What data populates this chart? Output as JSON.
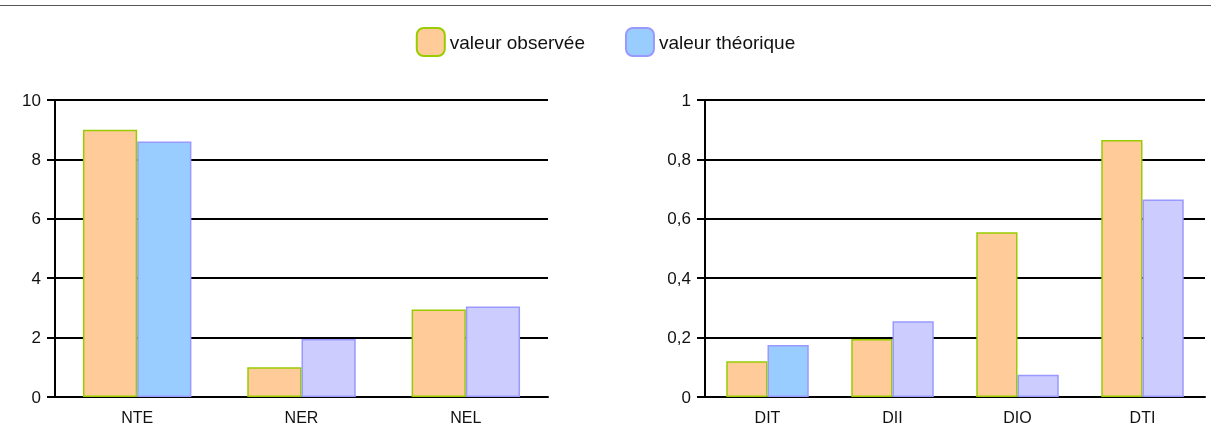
{
  "chart_data": [
    {
      "type": "bar",
      "categories": [
        "NTE",
        "NER",
        "NEL"
      ],
      "series": [
        {
          "name": "valeur observée",
          "color": "#ffcc99",
          "values": [
            9,
            1,
            2.95
          ]
        },
        {
          "name": "valeur théorique",
          "color": "#99ccff",
          "colors": [
            "#99ccff",
            "#ccccff",
            "#ccccff"
          ],
          "values": [
            8.6,
            1.95,
            3.05
          ]
        }
      ],
      "ylim": [
        0,
        10
      ],
      "yticks": [
        0,
        2,
        4,
        6,
        8,
        10
      ],
      "grid": "y",
      "legend": "top"
    },
    {
      "type": "bar",
      "categories": [
        "DIT",
        "DII",
        "DIO",
        "DTI"
      ],
      "series": [
        {
          "color": "#ffcc99",
          "values": [
            0.12,
            0.195,
            0.555,
            0.865
          ]
        },
        {
          "color": "#99ccff",
          "colors": [
            "#99ccff",
            "#ccccff",
            "#ccccff",
            "#ccccff"
          ],
          "values": [
            0.175,
            0.255,
            0.075,
            0.665
          ]
        }
      ],
      "ylim": [
        0,
        1
      ],
      "yticks": [
        0,
        {
          "value": 0.2,
          "label": "0,2"
        },
        {
          "value": 0.4,
          "label": "0,4"
        },
        {
          "value": 0.6,
          "label": "0,6"
        },
        {
          "value": 0.8,
          "label": "0,8"
        },
        1
      ],
      "grid": "y"
    }
  ]
}
